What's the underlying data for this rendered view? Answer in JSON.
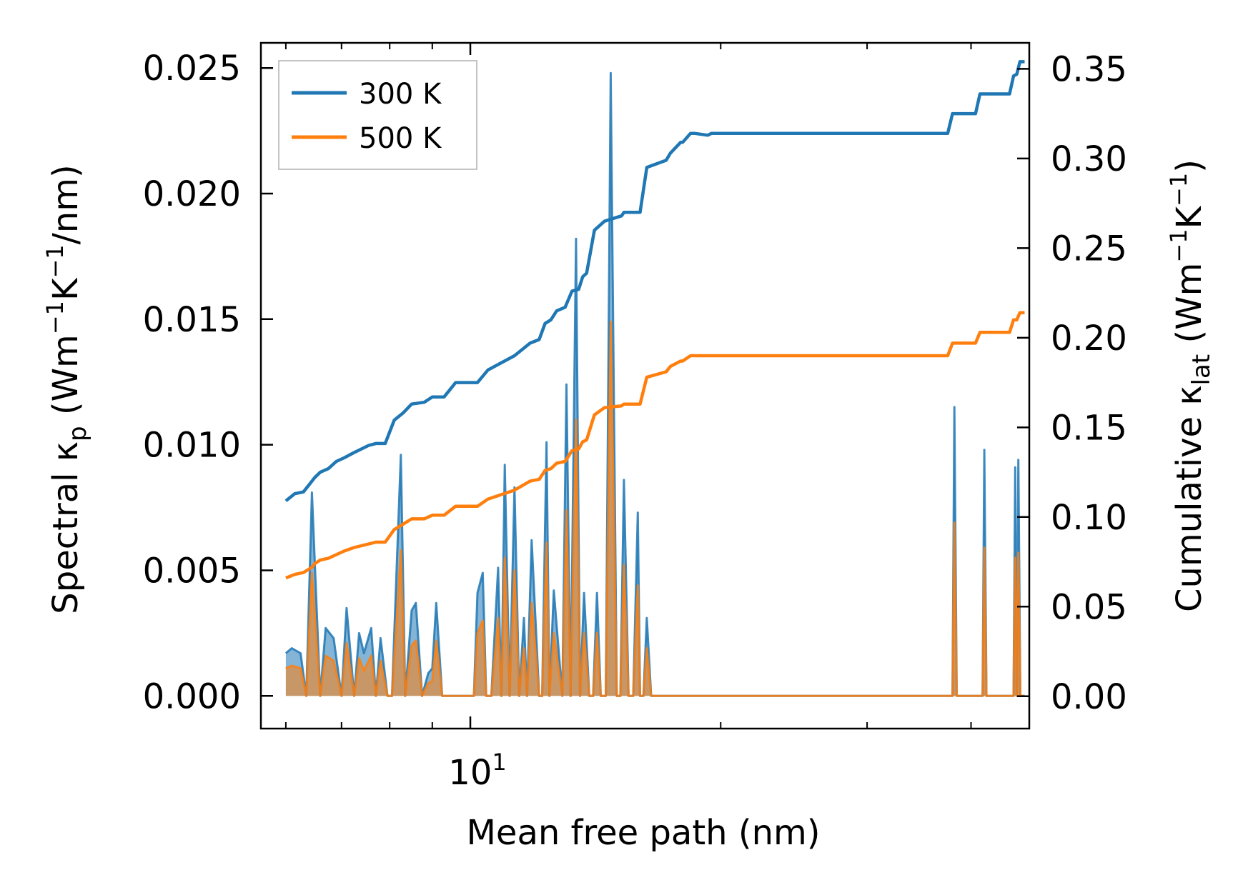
{
  "chart_data": {
    "type": "line",
    "xlabel": "Mean free path (nm)",
    "ylabel_left": {
      "main": "Spectral κ",
      "sub": "p",
      "unit_a": " (Wm",
      "sup1": "−1",
      "unit_b": "K",
      "sup2": "−1",
      "unit_c": "/nm)"
    },
    "ylabel_right": {
      "main": "Cumulative κ",
      "sub": "lat",
      "unit_a": " (Wm",
      "sup1": "−1",
      "unit_b": "K",
      "sup2": "−1",
      "unit_c": ")"
    },
    "xscale": "log",
    "xlim": [
      5.6,
      47
    ],
    "ylim_left": [
      -0.0013,
      0.026
    ],
    "ylim_right": [
      -0.018,
      0.3645
    ],
    "x_tick_label": {
      "base": "10",
      "exp": "1"
    },
    "left_ticks": [
      {
        "value": 0.0,
        "label": "0.000"
      },
      {
        "value": 0.005,
        "label": "0.005"
      },
      {
        "value": 0.01,
        "label": "0.010"
      },
      {
        "value": 0.015,
        "label": "0.015"
      },
      {
        "value": 0.02,
        "label": "0.020"
      },
      {
        "value": 0.025,
        "label": "0.025"
      }
    ],
    "right_ticks": [
      {
        "value": 0.0,
        "label": "0.00"
      },
      {
        "value": 0.05,
        "label": "0.05"
      },
      {
        "value": 0.1,
        "label": "0.10"
      },
      {
        "value": 0.15,
        "label": "0.15"
      },
      {
        "value": 0.2,
        "label": "0.20"
      },
      {
        "value": 0.25,
        "label": "0.25"
      },
      {
        "value": 0.3,
        "label": "0.30"
      },
      {
        "value": 0.35,
        "label": "0.35"
      }
    ],
    "legend": [
      {
        "name": "300 K",
        "color": "#1f77b4"
      },
      {
        "name": "500 K",
        "color": "#ff7f0e"
      }
    ],
    "spectral": {
      "x": [
        6.0,
        6.1,
        6.25,
        6.35,
        6.45,
        6.6,
        6.7,
        6.85,
        7.0,
        7.1,
        7.25,
        7.35,
        7.45,
        7.6,
        7.7,
        7.8,
        7.95,
        8.05,
        8.25,
        8.35,
        8.5,
        8.6,
        8.75,
        8.9,
        9.0,
        9.1,
        9.25,
        9.35,
        10.1,
        10.2,
        10.35,
        10.45,
        10.6,
        10.8,
        10.9,
        11.0,
        11.15,
        11.3,
        11.45,
        11.6,
        11.7,
        11.85,
        12.1,
        12.2,
        12.35,
        12.45,
        12.6,
        12.9,
        13.05,
        13.2,
        13.4,
        13.55,
        13.7,
        13.9,
        14.05,
        14.2,
        14.35,
        14.55,
        14.75,
        15.0,
        15.15,
        15.3,
        15.5,
        15.7,
        15.9,
        16.0,
        16.15,
        16.3,
        16.5,
        16.65,
        16.8,
        17.0,
        17.15,
        17.4,
        17.55,
        17.7,
        17.85,
        18.0,
        18.15,
        18.3,
        18.55,
        18.7,
        18.85,
        19.05,
        19.25,
        19.45,
        19.6,
        19.8,
        20.0,
        20.15,
        20.35,
        20.6,
        20.75,
        20.9,
        38.0,
        38.2,
        38.45,
        38.7,
        41.3,
        41.5,
        41.75,
        42.0,
        45.0,
        45.2,
        45.4,
        45.6,
        45.85,
        46.1,
        46.4
      ],
      "k300": [
        0.0017,
        0.0019,
        0.0017,
        0.0,
        0.0081,
        0.0,
        0.0027,
        0.0023,
        0.0,
        0.0035,
        0.0,
        0.0025,
        0.0017,
        0.0027,
        0.0,
        0.0023,
        0.0,
        0.0,
        0.0096,
        0.0,
        0.0034,
        0.0037,
        0.0,
        0.0009,
        0.0011,
        0.0037,
        0.0,
        0.0,
        0.0,
        0.0041,
        0.0049,
        0.0,
        0.0,
        0.0051,
        0.0,
        0.0092,
        0.0,
        0.0083,
        0.0,
        0.0031,
        0.0,
        0.0062,
        0.0,
        0.0,
        0.0101,
        0.0,
        0.0042,
        0.0,
        0.0124,
        0.0,
        0.0182,
        0.0,
        0.0041,
        0.0,
        0.0,
        0.0041,
        0.0,
        0.0,
        0.0248,
        0.0,
        0.0,
        0.0086,
        0.0,
        0.0,
        0.0073,
        0.0,
        0.0,
        0.0031,
        0.0,
        0.0,
        0.0,
        0.0,
        0.0,
        0.0,
        0.0,
        0.0,
        0.0,
        0.0,
        0.0,
        0.0,
        0.0,
        0.0,
        0.0,
        0.0,
        0.0,
        0.0,
        0.0,
        0.0,
        0.0,
        0.0,
        0.0,
        0.0,
        0.0,
        0.0,
        0.0,
        0.0115,
        0.0,
        0.0,
        0.0,
        0.0098,
        0.0,
        0.0,
        0.0,
        0.0091,
        0.0,
        0.0094,
        0.0,
        0.0,
        0.0
      ],
      "k500": [
        0.0011,
        0.0012,
        0.0011,
        0.0,
        0.0049,
        0.0,
        0.0016,
        0.0014,
        0.0,
        0.0021,
        0.0,
        0.0015,
        0.001,
        0.0016,
        0.0,
        0.0014,
        0.0,
        0.0,
        0.0058,
        0.0,
        0.002,
        0.0022,
        0.0,
        0.0005,
        0.0006,
        0.0022,
        0.0,
        0.0,
        0.0,
        0.0025,
        0.003,
        0.0,
        0.0,
        0.0031,
        0.0,
        0.0055,
        0.0,
        0.005,
        0.0,
        0.0019,
        0.0,
        0.0037,
        0.0,
        0.0,
        0.0061,
        0.0,
        0.0025,
        0.0,
        0.0074,
        0.0,
        0.011,
        0.0,
        0.0025,
        0.0,
        0.0,
        0.0025,
        0.0,
        0.0,
        0.0149,
        0.0,
        0.0,
        0.0052,
        0.0,
        0.0,
        0.0044,
        0.0,
        0.0,
        0.0019,
        0.0,
        0.0,
        0.0,
        0.0,
        0.0,
        0.0,
        0.0,
        0.0,
        0.0,
        0.0,
        0.0,
        0.0,
        0.0,
        0.0,
        0.0,
        0.0,
        0.0,
        0.0,
        0.0,
        0.0,
        0.0,
        0.0,
        0.0,
        0.0,
        0.0,
        0.0,
        0.0,
        0.0069,
        0.0,
        0.0,
        0.0,
        0.0059,
        0.0,
        0.0,
        0.0,
        0.0055,
        0.0,
        0.0057,
        0.0,
        0.0,
        0.0
      ]
    },
    "cumulative": {
      "x": [
        6.0,
        6.15,
        6.3,
        6.45,
        6.5,
        6.6,
        6.75,
        6.9,
        7.05,
        7.25,
        7.4,
        7.55,
        7.7,
        7.9,
        8.1,
        8.3,
        8.5,
        8.8,
        9.0,
        9.3,
        9.6,
        10.2,
        10.5,
        11.3,
        11.8,
        12.1,
        12.3,
        12.5,
        12.7,
        13.0,
        13.25,
        13.5,
        13.65,
        13.8,
        14.1,
        14.5,
        15.2,
        15.3,
        16.0,
        16.3,
        17.2,
        17.4,
        17.9,
        18.0,
        18.4,
        18.6,
        19.3,
        19.5,
        20.3,
        37.5,
        38.0,
        40.5,
        41.0,
        44.5,
        45.0,
        45.4,
        45.8,
        46.4
      ],
      "c300": [
        0.109,
        0.113,
        0.114,
        0.12,
        0.122,
        0.125,
        0.127,
        0.131,
        0.133,
        0.136,
        0.138,
        0.14,
        0.141,
        0.141,
        0.154,
        0.158,
        0.163,
        0.164,
        0.167,
        0.167,
        0.175,
        0.175,
        0.182,
        0.19,
        0.197,
        0.199,
        0.208,
        0.21,
        0.215,
        0.217,
        0.226,
        0.227,
        0.234,
        0.236,
        0.26,
        0.265,
        0.268,
        0.27,
        0.27,
        0.295,
        0.299,
        0.303,
        0.309,
        0.309,
        0.314,
        0.314,
        0.313,
        0.314,
        0.314,
        0.314,
        0.325,
        0.325,
        0.336,
        0.336,
        0.346,
        0.347,
        0.354,
        0.354
      ],
      "c500": [
        0.066,
        0.068,
        0.069,
        0.072,
        0.074,
        0.076,
        0.077,
        0.079,
        0.081,
        0.083,
        0.084,
        0.085,
        0.086,
        0.086,
        0.093,
        0.096,
        0.099,
        0.099,
        0.101,
        0.101,
        0.106,
        0.106,
        0.11,
        0.115,
        0.12,
        0.121,
        0.126,
        0.127,
        0.13,
        0.131,
        0.137,
        0.138,
        0.142,
        0.143,
        0.157,
        0.161,
        0.162,
        0.163,
        0.163,
        0.178,
        0.181,
        0.184,
        0.187,
        0.187,
        0.19,
        0.19,
        0.19,
        0.19,
        0.19,
        0.19,
        0.197,
        0.197,
        0.203,
        0.203,
        0.21,
        0.21,
        0.214,
        0.214
      ]
    }
  }
}
